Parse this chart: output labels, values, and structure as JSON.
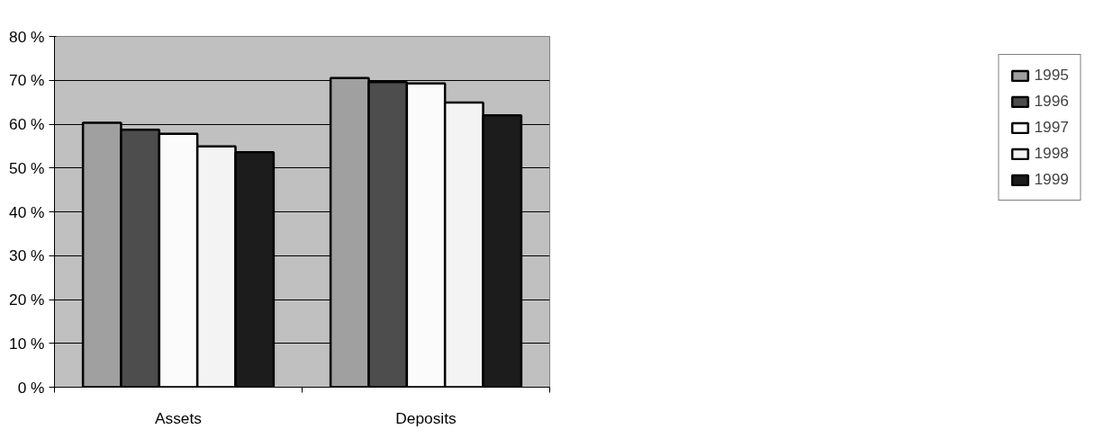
{
  "chart_data": {
    "type": "bar",
    "categories": [
      "Assets",
      "Deposits"
    ],
    "series": [
      {
        "name": "1995",
        "color": "#a0a0a0",
        "values": [
          60.3,
          70.5
        ]
      },
      {
        "name": "1996",
        "color": "#4d4d4d",
        "values": [
          58.7,
          69.6
        ]
      },
      {
        "name": "1997",
        "color": "#fbfbfb",
        "values": [
          57.8,
          69.3
        ]
      },
      {
        "name": "1998",
        "color": "#f3f3f3",
        "values": [
          54.9,
          64.9
        ]
      },
      {
        "name": "1999",
        "color": "#1c1c1c",
        "values": [
          53.6,
          62.0
        ]
      }
    ],
    "ylim": [
      0,
      80
    ],
    "yticks": [
      {
        "value": 0,
        "label": "0 %"
      },
      {
        "value": 10,
        "label": "10 %"
      },
      {
        "value": 20,
        "label": "20 %"
      },
      {
        "value": 30,
        "label": "30 %"
      },
      {
        "value": 40,
        "label": "40 %"
      },
      {
        "value": 50,
        "label": "50 %"
      },
      {
        "value": 60,
        "label": "60 %"
      },
      {
        "value": 70,
        "label": "70 %"
      },
      {
        "value": 80,
        "label": "80 %"
      }
    ],
    "grid": "y",
    "legend": "right"
  }
}
